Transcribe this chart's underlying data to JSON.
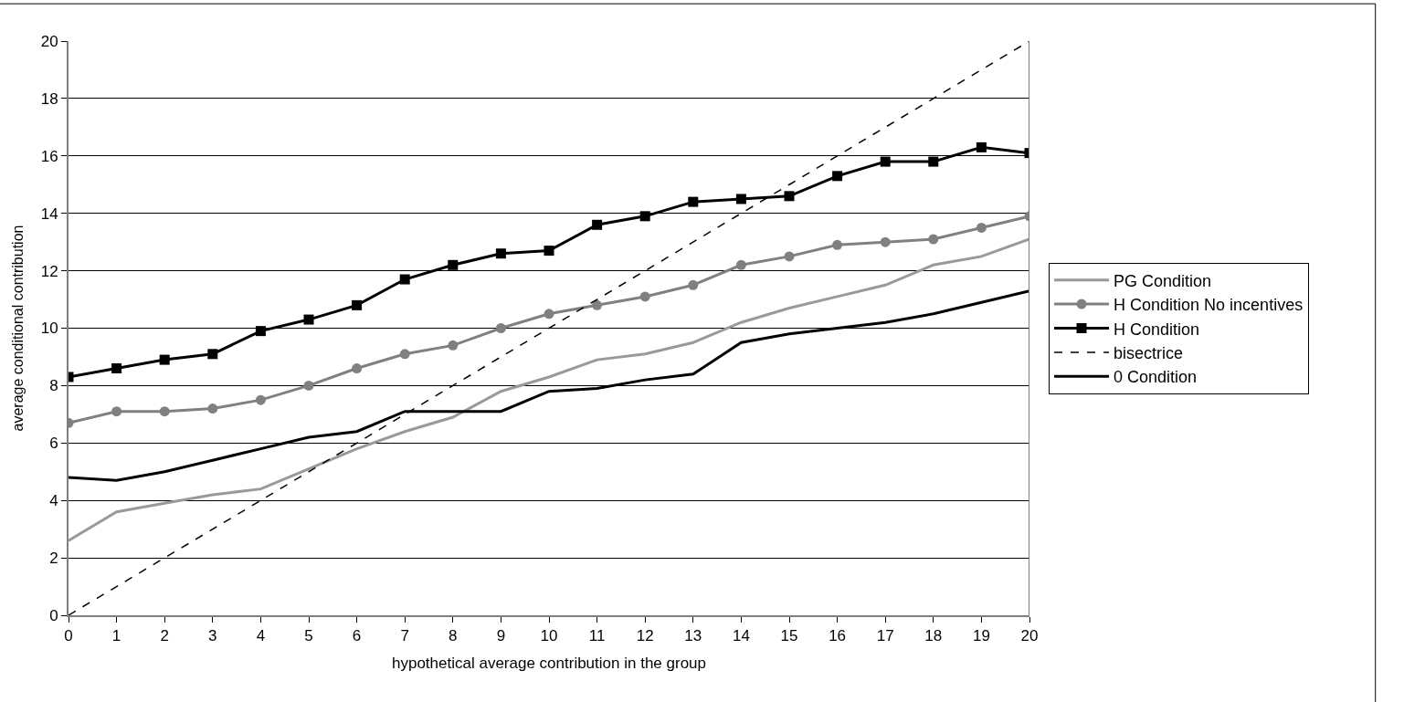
{
  "chart_data": {
    "type": "line",
    "xlabel": "hypothetical average contribution in the group",
    "ylabel": "average conditional contribution",
    "x": [
      0,
      1,
      2,
      3,
      4,
      5,
      6,
      7,
      8,
      9,
      10,
      11,
      12,
      13,
      14,
      15,
      16,
      17,
      18,
      19,
      20
    ],
    "series": [
      {
        "name": "PG Condition",
        "color": "#999999",
        "marker": "none",
        "values": [
          2.6,
          3.6,
          3.9,
          4.2,
          4.4,
          5.1,
          5.8,
          6.4,
          6.9,
          7.8,
          8.3,
          8.9,
          9.1,
          9.5,
          10.2,
          10.7,
          11.1,
          11.5,
          12.2,
          12.5,
          13.1
        ]
      },
      {
        "name": "H Condition No incentives",
        "color": "#808080",
        "marker": "circle",
        "values": [
          6.7,
          7.1,
          7.1,
          7.2,
          7.5,
          8.0,
          8.6,
          9.1,
          9.4,
          10.0,
          10.5,
          10.8,
          11.1,
          11.5,
          12.2,
          12.5,
          12.9,
          13.0,
          13.1,
          13.5,
          13.9
        ]
      },
      {
        "name": "H Condition",
        "color": "#000000",
        "marker": "square",
        "values": [
          8.3,
          8.6,
          8.9,
          9.1,
          9.9,
          10.3,
          10.8,
          11.7,
          12.2,
          12.6,
          12.7,
          13.6,
          13.9,
          14.4,
          14.5,
          14.6,
          15.3,
          15.8,
          15.8,
          16.3,
          16.1
        ]
      },
      {
        "name": "bisectrice",
        "color": "#000000",
        "marker": "none",
        "line_style": "dashed",
        "values": [
          0,
          1,
          2,
          3,
          4,
          5,
          6,
          7,
          8,
          9,
          10,
          11,
          12,
          13,
          14,
          15,
          16,
          17,
          18,
          19,
          20
        ]
      },
      {
        "name": "0 Condition",
        "color": "#000000",
        "marker": "none",
        "values": [
          4.8,
          4.7,
          5.0,
          5.4,
          5.8,
          6.2,
          6.4,
          7.1,
          7.1,
          7.1,
          7.8,
          7.9,
          8.2,
          8.4,
          9.5,
          9.8,
          10.0,
          10.2,
          10.5,
          10.9,
          11.3
        ]
      }
    ],
    "xlim": [
      0,
      20
    ],
    "xticks": [
      0,
      1,
      2,
      3,
      4,
      5,
      6,
      7,
      8,
      9,
      10,
      11,
      12,
      13,
      14,
      15,
      16,
      17,
      18,
      19,
      20
    ],
    "ylim": [
      0,
      20
    ],
    "yticks": [
      0,
      2,
      4,
      6,
      8,
      10,
      12,
      14,
      16,
      18,
      20
    ],
    "grid": "y",
    "legend": "right"
  }
}
